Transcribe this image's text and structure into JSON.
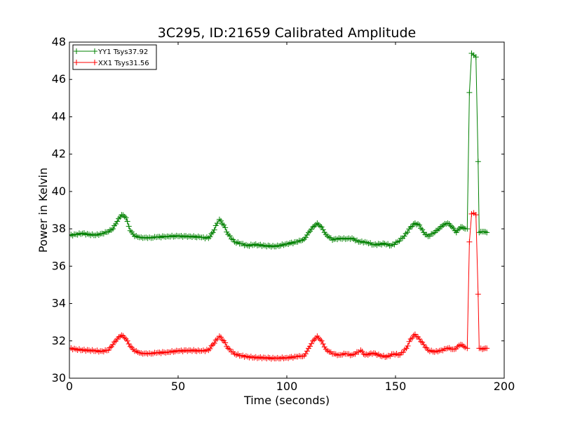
{
  "chart_data": {
    "type": "line",
    "title": "3C295, ID:21659 Calibrated Amplitude",
    "xlabel": "Time (seconds)",
    "ylabel": "Power in Kelvin",
    "xlim": [
      0,
      200
    ],
    "ylim": [
      30,
      48
    ],
    "xticks": [
      0,
      50,
      100,
      150,
      200
    ],
    "yticks": [
      30,
      32,
      34,
      36,
      38,
      40,
      42,
      44,
      46,
      48
    ],
    "grid": false,
    "legend_position": "top-left",
    "colors": {
      "green": "#008000",
      "red": "#ff0000"
    },
    "series": [
      {
        "name": "YY1 Tsys37.92",
        "color": "#008000",
        "marker": "plus",
        "points": [
          [
            0,
            37.65
          ],
          [
            3,
            37.7
          ],
          [
            6,
            37.75
          ],
          [
            9,
            37.7
          ],
          [
            12,
            37.65
          ],
          [
            15,
            37.75
          ],
          [
            18,
            37.85
          ],
          [
            20,
            38.0
          ],
          [
            22,
            38.4
          ],
          [
            24,
            38.75
          ],
          [
            26,
            38.6
          ],
          [
            28,
            37.9
          ],
          [
            30,
            37.6
          ],
          [
            33,
            37.55
          ],
          [
            36,
            37.5
          ],
          [
            40,
            37.55
          ],
          [
            45,
            37.6
          ],
          [
            50,
            37.6
          ],
          [
            55,
            37.6
          ],
          [
            60,
            37.55
          ],
          [
            64,
            37.5
          ],
          [
            66,
            37.8
          ],
          [
            68,
            38.3
          ],
          [
            69,
            38.5
          ],
          [
            71,
            38.2
          ],
          [
            73,
            37.7
          ],
          [
            76,
            37.3
          ],
          [
            79,
            37.2
          ],
          [
            82,
            37.1
          ],
          [
            85,
            37.15
          ],
          [
            90,
            37.1
          ],
          [
            95,
            37.05
          ],
          [
            100,
            37.2
          ],
          [
            105,
            37.3
          ],
          [
            108,
            37.45
          ],
          [
            110,
            37.8
          ],
          [
            112,
            38.1
          ],
          [
            114,
            38.3
          ],
          [
            116,
            38.1
          ],
          [
            118,
            37.7
          ],
          [
            121,
            37.4
          ],
          [
            124,
            37.5
          ],
          [
            127,
            37.45
          ],
          [
            130,
            37.5
          ],
          [
            133,
            37.3
          ],
          [
            136,
            37.3
          ],
          [
            140,
            37.15
          ],
          [
            145,
            37.2
          ],
          [
            148,
            37.1
          ],
          [
            151,
            37.3
          ],
          [
            154,
            37.6
          ],
          [
            157,
            38.1
          ],
          [
            159,
            38.3
          ],
          [
            161,
            38.2
          ],
          [
            163,
            37.8
          ],
          [
            165,
            37.6
          ],
          [
            168,
            37.8
          ],
          [
            170,
            38.0
          ],
          [
            172,
            38.2
          ],
          [
            174,
            38.3
          ],
          [
            176,
            38.1
          ],
          [
            178,
            37.8
          ],
          [
            180,
            38.1
          ],
          [
            182,
            38.0
          ],
          [
            183,
            38.0
          ],
          [
            184,
            45.3
          ],
          [
            185,
            47.4
          ],
          [
            186,
            47.3
          ],
          [
            187,
            47.2
          ],
          [
            188,
            41.6
          ],
          [
            188.5,
            37.8
          ],
          [
            190,
            37.85
          ],
          [
            192,
            37.8
          ]
        ]
      },
      {
        "name": "XX1 Tsys31.56",
        "color": "#ff0000",
        "marker": "plus",
        "points": [
          [
            0,
            31.6
          ],
          [
            3,
            31.55
          ],
          [
            6,
            31.5
          ],
          [
            9,
            31.5
          ],
          [
            12,
            31.45
          ],
          [
            15,
            31.45
          ],
          [
            18,
            31.5
          ],
          [
            20,
            31.8
          ],
          [
            22,
            32.1
          ],
          [
            24,
            32.3
          ],
          [
            26,
            32.1
          ],
          [
            28,
            31.7
          ],
          [
            30,
            31.45
          ],
          [
            33,
            31.35
          ],
          [
            36,
            31.3
          ],
          [
            40,
            31.35
          ],
          [
            45,
            31.4
          ],
          [
            50,
            31.45
          ],
          [
            55,
            31.5
          ],
          [
            60,
            31.45
          ],
          [
            64,
            31.5
          ],
          [
            66,
            31.8
          ],
          [
            68,
            32.1
          ],
          [
            69,
            32.25
          ],
          [
            71,
            32.0
          ],
          [
            73,
            31.6
          ],
          [
            76,
            31.3
          ],
          [
            79,
            31.2
          ],
          [
            82,
            31.15
          ],
          [
            85,
            31.1
          ],
          [
            90,
            31.1
          ],
          [
            95,
            31.05
          ],
          [
            100,
            31.1
          ],
          [
            105,
            31.15
          ],
          [
            108,
            31.2
          ],
          [
            110,
            31.6
          ],
          [
            112,
            32.0
          ],
          [
            114,
            32.25
          ],
          [
            116,
            32.0
          ],
          [
            118,
            31.55
          ],
          [
            121,
            31.3
          ],
          [
            124,
            31.25
          ],
          [
            127,
            31.3
          ],
          [
            130,
            31.25
          ],
          [
            133,
            31.4
          ],
          [
            134,
            31.5
          ],
          [
            136,
            31.25
          ],
          [
            138,
            31.3
          ],
          [
            140,
            31.35
          ],
          [
            143,
            31.2
          ],
          [
            146,
            31.15
          ],
          [
            149,
            31.3
          ],
          [
            152,
            31.25
          ],
          [
            155,
            31.6
          ],
          [
            157,
            32.1
          ],
          [
            159,
            32.35
          ],
          [
            161,
            32.1
          ],
          [
            163,
            31.8
          ],
          [
            165,
            31.5
          ],
          [
            168,
            31.4
          ],
          [
            171,
            31.5
          ],
          [
            174,
            31.6
          ],
          [
            177,
            31.55
          ],
          [
            180,
            31.8
          ],
          [
            182,
            31.65
          ],
          [
            183,
            31.6
          ],
          [
            184,
            37.3
          ],
          [
            185,
            38.8
          ],
          [
            186,
            38.85
          ],
          [
            187,
            38.75
          ],
          [
            188,
            34.5
          ],
          [
            188.5,
            31.6
          ],
          [
            190,
            31.55
          ],
          [
            192,
            31.6
          ]
        ]
      }
    ]
  }
}
